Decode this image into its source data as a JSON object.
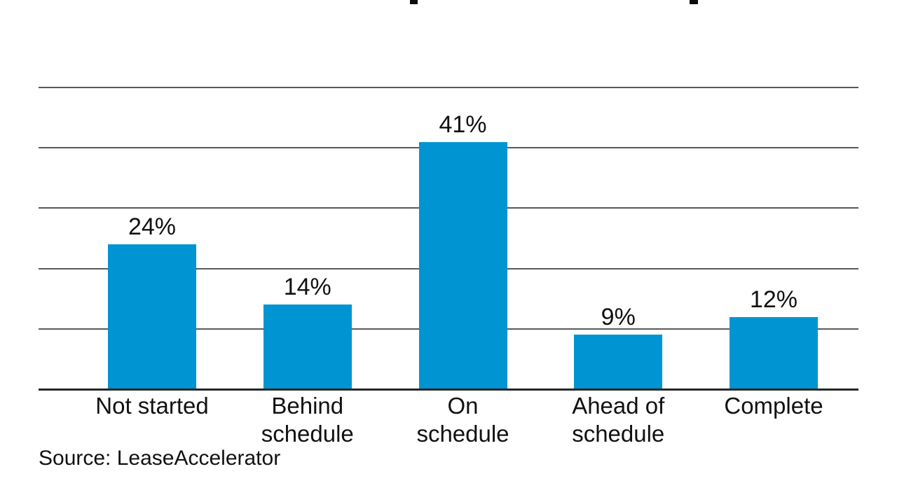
{
  "chart_data": {
    "type": "bar",
    "categories": [
      "Not started",
      "Behind schedule",
      "On schedule",
      "Ahead of schedule",
      "Complete"
    ],
    "values": [
      24,
      14,
      41,
      9,
      12
    ],
    "unit": "%",
    "data_labels": [
      "24%",
      "14%",
      "41%",
      "9%",
      "12%"
    ],
    "tick_label_lines": [
      [
        "Not started"
      ],
      [
        "Behind",
        "schedule"
      ],
      [
        "On",
        "schedule"
      ],
      [
        "Ahead of",
        "schedule"
      ],
      [
        "Complete"
      ]
    ],
    "ylim": [
      0,
      50
    ],
    "gridlines": [
      10,
      20,
      30,
      40,
      50
    ],
    "grid": true,
    "legend": false,
    "xlabel": "",
    "ylabel": "",
    "source": "Source: LeaseAccelerator",
    "bar_color": "#0094d2",
    "text_color": "#111111",
    "gridline_color": "#595959",
    "axis_color": "#262626"
  }
}
